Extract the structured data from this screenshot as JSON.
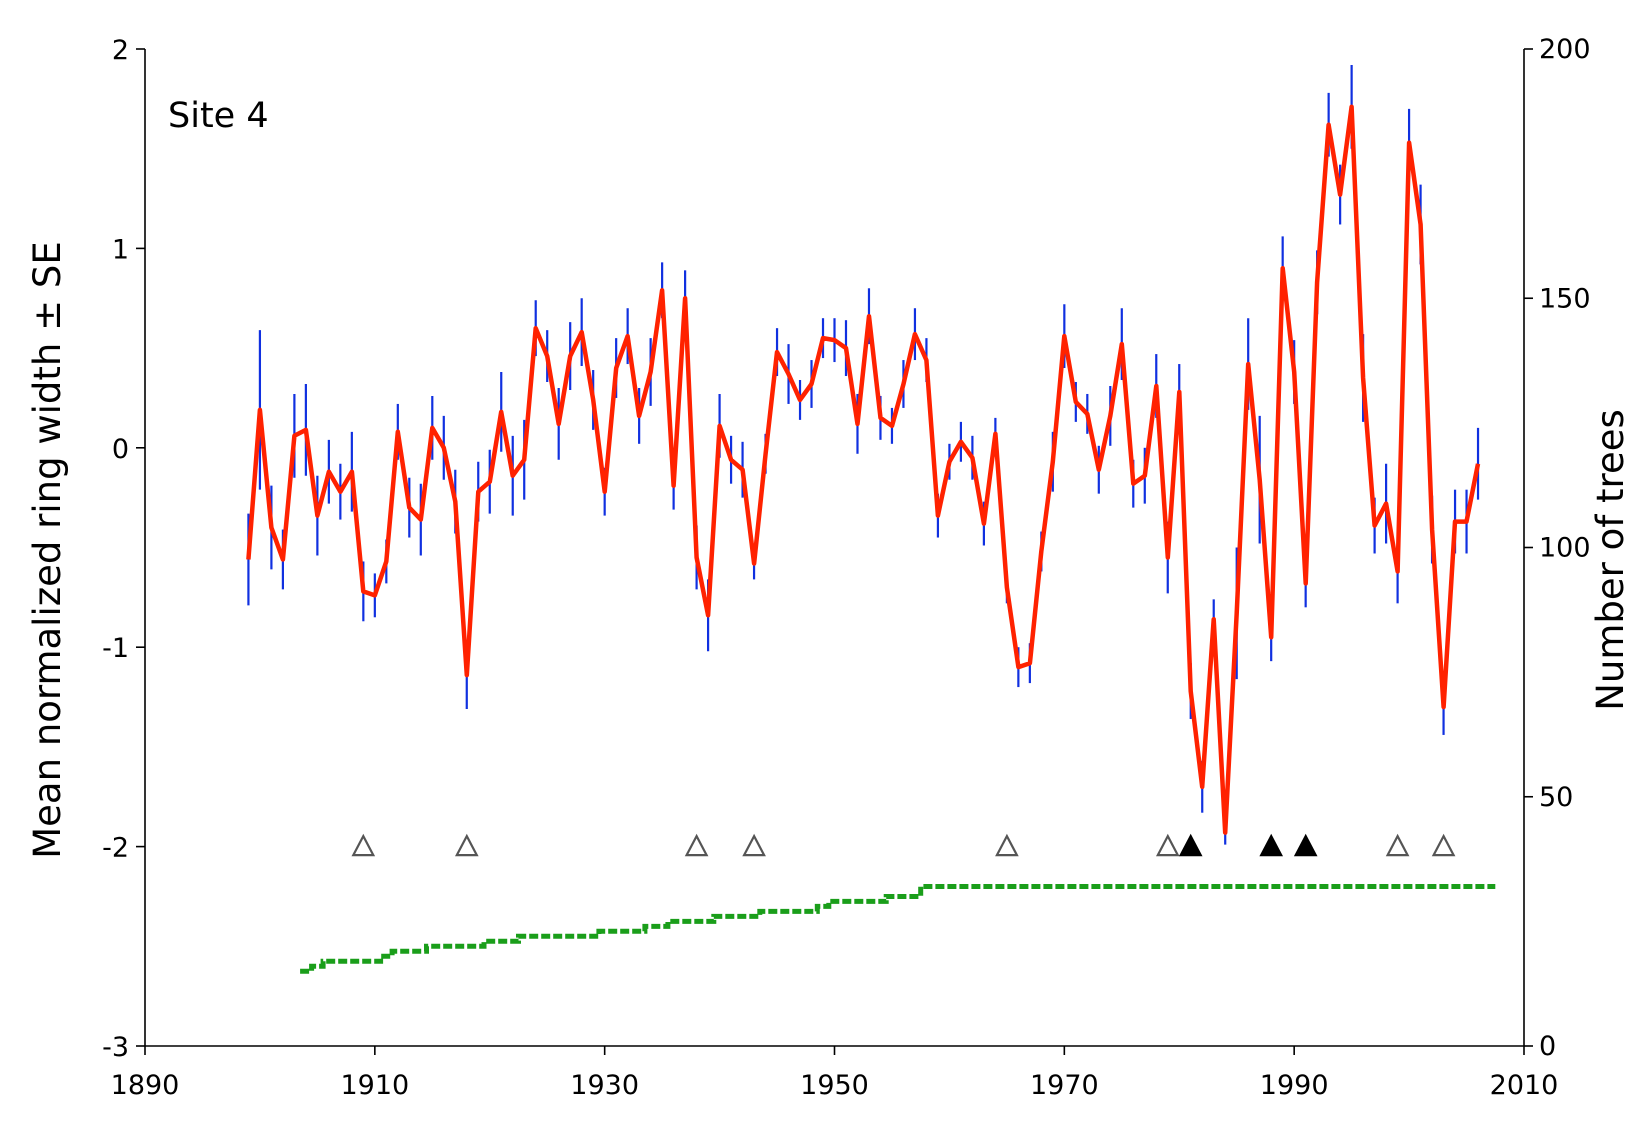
{
  "panel_label": "Site 4",
  "y_left_label": "Mean normalized ring width ± SE",
  "y_right_label": "Number of trees",
  "colors": {
    "ring_width_line": "#ff2200",
    "error_bars": "#1030e0",
    "tree_count": "#1a9e1a",
    "marker_outline": "#555555",
    "marker_filled": "#000000"
  },
  "chart_data": {
    "type": "line",
    "xlim": [
      1890,
      2010
    ],
    "ylim_left": [
      -3,
      2
    ],
    "ylim_right": [
      0,
      200
    ],
    "x_ticks": [
      "1890",
      "1910",
      "1930",
      "1950",
      "1970",
      "1990",
      "2010"
    ],
    "y_left_ticks": [
      "-3",
      "-2",
      "-1",
      "0",
      "1",
      "2"
    ],
    "y_right_ticks": [
      "0",
      "50",
      "100",
      "150",
      "200"
    ],
    "grid": false,
    "series": [
      {
        "name": "Mean normalized ring width",
        "axis": "left",
        "years": [
          1899,
          1900,
          1901,
          1902,
          1903,
          1904,
          1905,
          1906,
          1907,
          1908,
          1909,
          1910,
          1911,
          1912,
          1913,
          1914,
          1915,
          1916,
          1917,
          1918,
          1919,
          1920,
          1921,
          1922,
          1923,
          1924,
          1925,
          1926,
          1927,
          1928,
          1929,
          1930,
          1931,
          1932,
          1933,
          1934,
          1935,
          1936,
          1937,
          1938,
          1939,
          1940,
          1941,
          1942,
          1943,
          1944,
          1945,
          1946,
          1947,
          1948,
          1949,
          1950,
          1951,
          1952,
          1953,
          1954,
          1955,
          1956,
          1957,
          1958,
          1959,
          1960,
          1961,
          1962,
          1963,
          1964,
          1965,
          1966,
          1967,
          1968,
          1969,
          1970,
          1971,
          1972,
          1973,
          1974,
          1975,
          1976,
          1977,
          1978,
          1979,
          1980,
          1981,
          1982,
          1983,
          1984,
          1985,
          1986,
          1987,
          1988,
          1989,
          1990,
          1991,
          1992,
          1993,
          1994,
          1995,
          1996,
          1997,
          1998,
          1999,
          2000,
          2001,
          2002,
          2003,
          2004,
          2005,
          2006
        ],
        "values": [
          -0.56,
          0.19,
          -0.4,
          -0.56,
          0.06,
          0.09,
          -0.34,
          -0.12,
          -0.22,
          -0.12,
          -0.72,
          -0.74,
          -0.57,
          0.08,
          -0.3,
          -0.36,
          0.1,
          0.0,
          -0.27,
          -1.14,
          -0.22,
          -0.17,
          0.18,
          -0.14,
          -0.06,
          0.6,
          0.46,
          0.12,
          0.46,
          0.58,
          0.24,
          -0.22,
          0.4,
          0.56,
          0.16,
          0.38,
          0.79,
          -0.19,
          0.75,
          -0.55,
          -0.84,
          0.11,
          -0.06,
          -0.11,
          -0.58,
          -0.03,
          0.48,
          0.37,
          0.24,
          0.32,
          0.55,
          0.54,
          0.5,
          0.12,
          0.66,
          0.15,
          0.11,
          0.32,
          0.57,
          0.44,
          -0.34,
          -0.07,
          0.03,
          -0.05,
          -0.38,
          0.07,
          -0.7,
          -1.1,
          -1.08,
          -0.52,
          -0.07,
          0.56,
          0.23,
          0.17,
          -0.11,
          0.16,
          0.52,
          -0.18,
          -0.14,
          0.31,
          -0.55,
          0.28,
          -1.22,
          -1.7,
          -0.86,
          -1.93,
          -0.83,
          0.42,
          -0.16,
          -0.95,
          0.9,
          0.38,
          -0.68,
          0.83,
          1.62,
          1.27,
          1.71,
          0.35,
          -0.39,
          -0.28,
          -0.62,
          1.53,
          1.12,
          -0.41,
          -1.3,
          -0.37,
          -0.37,
          -0.08
        ],
        "se": [
          0.23,
          0.4,
          0.21,
          0.15,
          0.21,
          0.23,
          0.2,
          0.16,
          0.14,
          0.2,
          0.15,
          0.11,
          0.11,
          0.14,
          0.15,
          0.18,
          0.16,
          0.16,
          0.16,
          0.17,
          0.15,
          0.16,
          0.2,
          0.2,
          0.2,
          0.14,
          0.13,
          0.18,
          0.17,
          0.17,
          0.15,
          0.12,
          0.15,
          0.14,
          0.14,
          0.17,
          0.14,
          0.12,
          0.14,
          0.16,
          0.18,
          0.16,
          0.12,
          0.14,
          0.08,
          0.1,
          0.12,
          0.15,
          0.1,
          0.12,
          0.1,
          0.11,
          0.14,
          0.15,
          0.14,
          0.11,
          0.09,
          0.12,
          0.13,
          0.11,
          0.11,
          0.09,
          0.1,
          0.11,
          0.11,
          0.08,
          0.08,
          0.1,
          0.1,
          0.1,
          0.15,
          0.16,
          0.1,
          0.1,
          0.12,
          0.15,
          0.18,
          0.12,
          0.14,
          0.16,
          0.18,
          0.14,
          0.14,
          0.13,
          0.1,
          0.06,
          0.33,
          0.23,
          0.32,
          0.12,
          0.16,
          0.16,
          0.12,
          0.16,
          0.16,
          0.15,
          0.21,
          0.22,
          0.14,
          0.2,
          0.16,
          0.17,
          0.2,
          0.17,
          0.14,
          0.16,
          0.16,
          0.18
        ]
      },
      {
        "name": "Number of trees",
        "axis": "right",
        "years": [
          1904,
          1905,
          1906,
          1907,
          1908,
          1909,
          1910,
          1911,
          1912,
          1913,
          1914,
          1915,
          1916,
          1917,
          1918,
          1919,
          1920,
          1921,
          1922,
          1923,
          1924,
          1925,
          1926,
          1927,
          1928,
          1929,
          1930,
          1931,
          1932,
          1933,
          1934,
          1935,
          1936,
          1937,
          1938,
          1939,
          1940,
          1941,
          1942,
          1943,
          1944,
          1945,
          1946,
          1947,
          1948,
          1949,
          1950,
          1951,
          1952,
          1953,
          1954,
          1955,
          1956,
          1957,
          1958,
          1959,
          1960,
          1961,
          1962,
          1963,
          1964,
          1965,
          1966,
          1967,
          1968,
          1969,
          1970,
          1971,
          1972,
          1973,
          1974,
          1975,
          1976,
          1977,
          1978,
          1979,
          1980,
          1981,
          1982,
          1983,
          1984,
          1985,
          1986,
          1987,
          1988,
          1989,
          1990,
          1991,
          1992,
          1993,
          1994,
          1995,
          1996,
          1997,
          1998,
          1999,
          2000,
          2001,
          2002,
          2003,
          2004,
          2005,
          2006,
          2007
        ],
        "values": [
          15,
          16,
          17,
          17,
          17,
          17,
          17,
          18,
          19,
          19,
          19,
          20,
          20,
          20,
          20,
          20,
          21,
          21,
          21,
          22,
          22,
          22,
          22,
          22,
          22,
          22,
          23,
          23,
          23,
          23,
          24,
          24,
          25,
          25,
          25,
          25,
          26,
          26,
          26,
          26,
          27,
          27,
          27,
          27,
          27,
          28,
          29,
          29,
          29,
          29,
          29,
          30,
          30,
          30,
          32,
          32,
          32,
          32,
          32,
          32,
          32,
          32,
          32,
          32,
          32,
          32,
          32,
          32,
          32,
          32,
          32,
          32,
          32,
          32,
          32,
          32,
          32,
          32,
          32,
          32,
          32,
          32,
          32,
          32,
          32,
          32,
          32,
          32,
          32,
          32,
          32,
          32,
          32,
          32,
          32,
          32,
          32,
          32,
          32,
          32,
          32,
          32,
          32,
          32
        ]
      }
    ],
    "markers": {
      "y": -2,
      "open_years": [
        1909,
        1918,
        1938,
        1943,
        1965,
        1979,
        1999,
        2003
      ],
      "filled_years": [
        1981,
        1988,
        1991
      ]
    }
  }
}
